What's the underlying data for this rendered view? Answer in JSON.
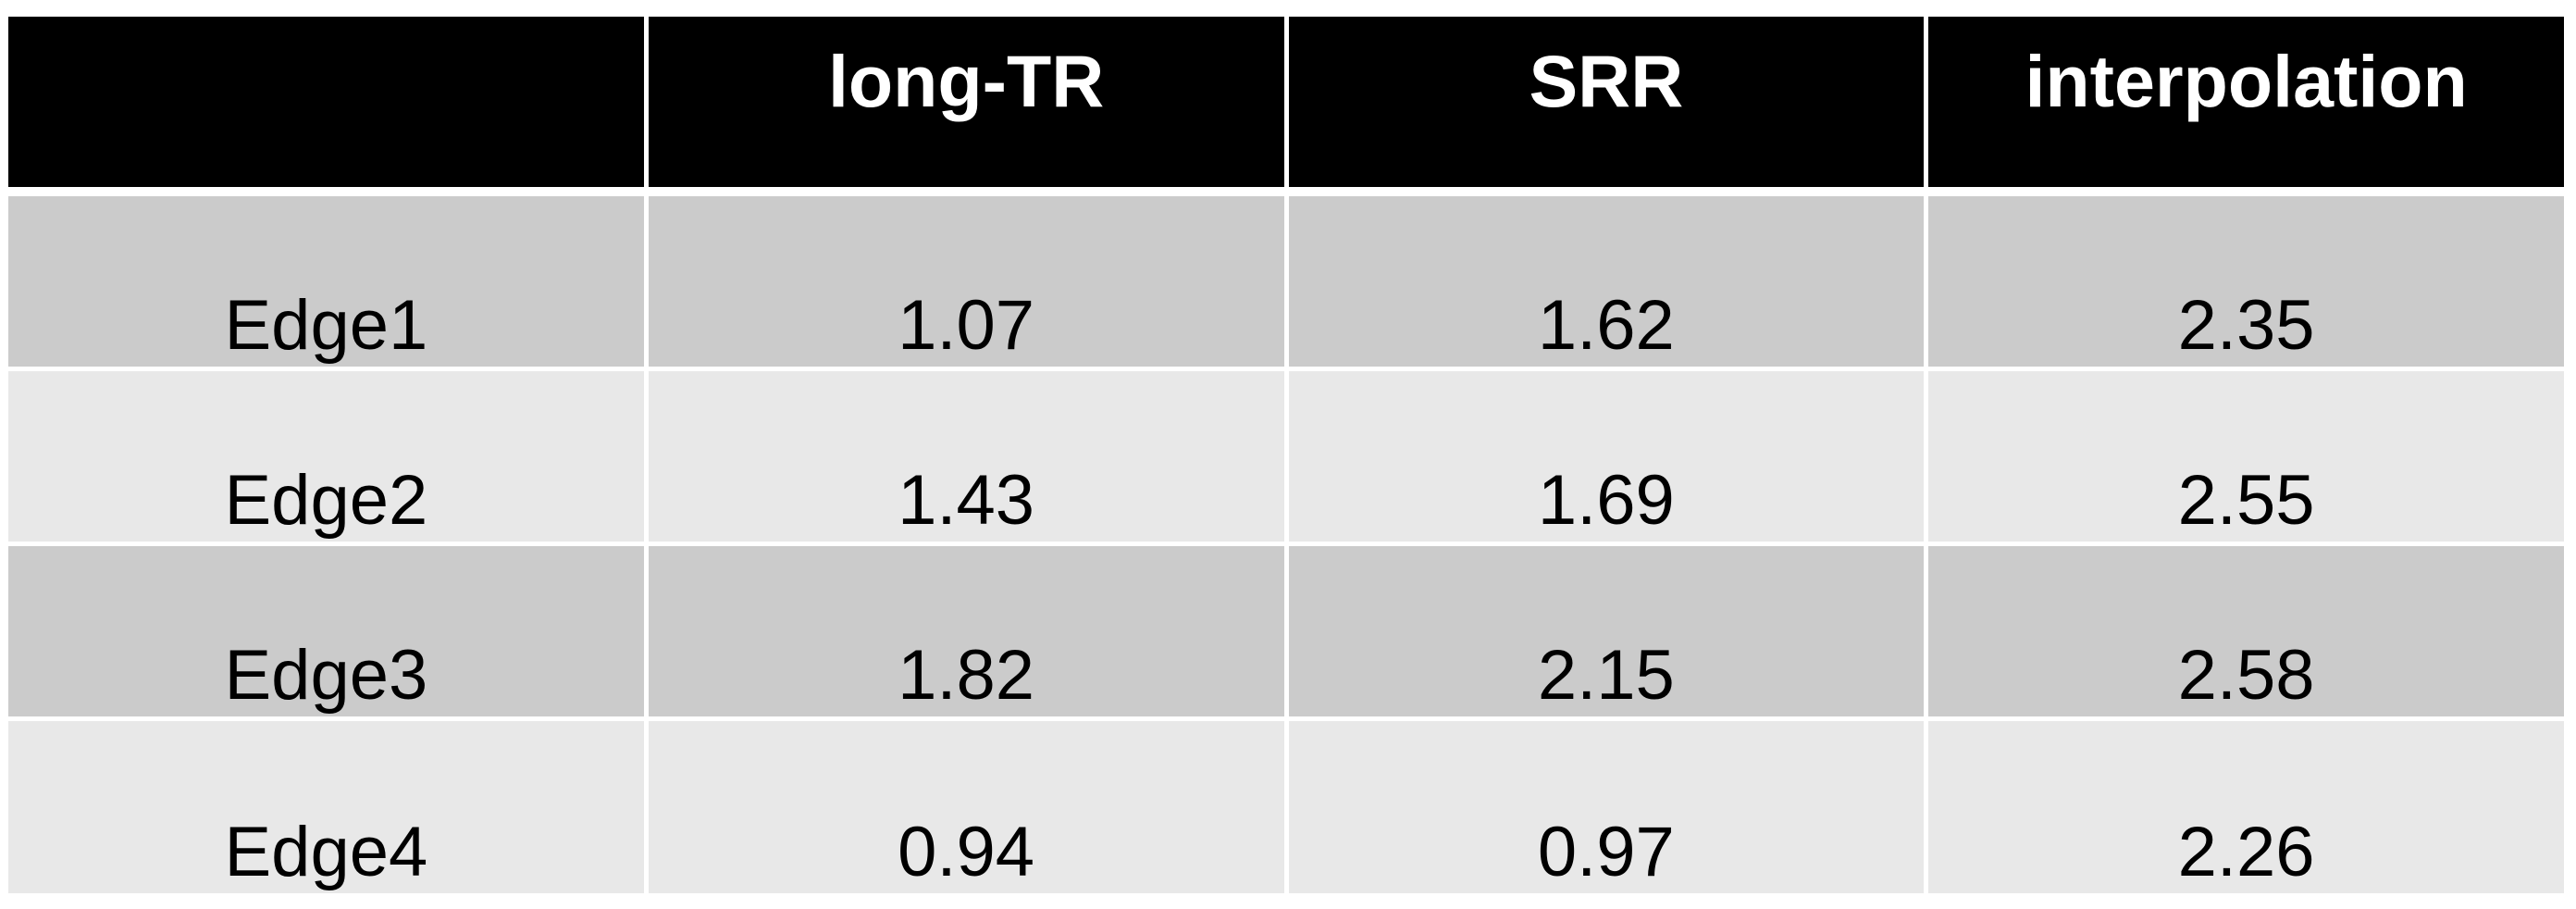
{
  "table": {
    "header": [
      "",
      "long-TR",
      "SRR",
      "interpolation"
    ],
    "rows": [
      {
        "cells": [
          "Edge1",
          "1.07",
          "1.62",
          "2.35"
        ]
      },
      {
        "cells": [
          "Edge2",
          "1.43",
          "1.69",
          "2.55"
        ]
      },
      {
        "cells": [
          "Edge3",
          "1.82",
          "2.15",
          "2.58"
        ]
      },
      {
        "cells": [
          "Edge4",
          "0.94",
          "0.97",
          "2.26"
        ]
      }
    ]
  },
  "colors": {
    "header_bg": "#000000",
    "header_text": "#ffffff",
    "row_dark": "#cbcbcb",
    "row_light": "#e8e8e8",
    "gutter": "#ffffff",
    "body_text": "#000000"
  },
  "chart_data": {
    "type": "table",
    "title": "",
    "columns": [
      "",
      "long-TR",
      "SRR",
      "interpolation"
    ],
    "row_labels": [
      "Edge1",
      "Edge2",
      "Edge3",
      "Edge4"
    ],
    "series": [
      {
        "name": "long-TR",
        "values": [
          1.07,
          1.43,
          1.82,
          0.94
        ]
      },
      {
        "name": "SRR",
        "values": [
          1.62,
          1.69,
          2.15,
          0.97
        ]
      },
      {
        "name": "interpolation",
        "values": [
          2.35,
          2.55,
          2.58,
          2.26
        ]
      }
    ],
    "rows": [
      [
        "Edge1",
        1.07,
        1.62,
        2.35
      ],
      [
        "Edge2",
        1.43,
        1.69,
        2.55
      ],
      [
        "Edge3",
        1.82,
        2.15,
        2.58
      ],
      [
        "Edge4",
        0.94,
        0.97,
        2.26
      ]
    ]
  }
}
